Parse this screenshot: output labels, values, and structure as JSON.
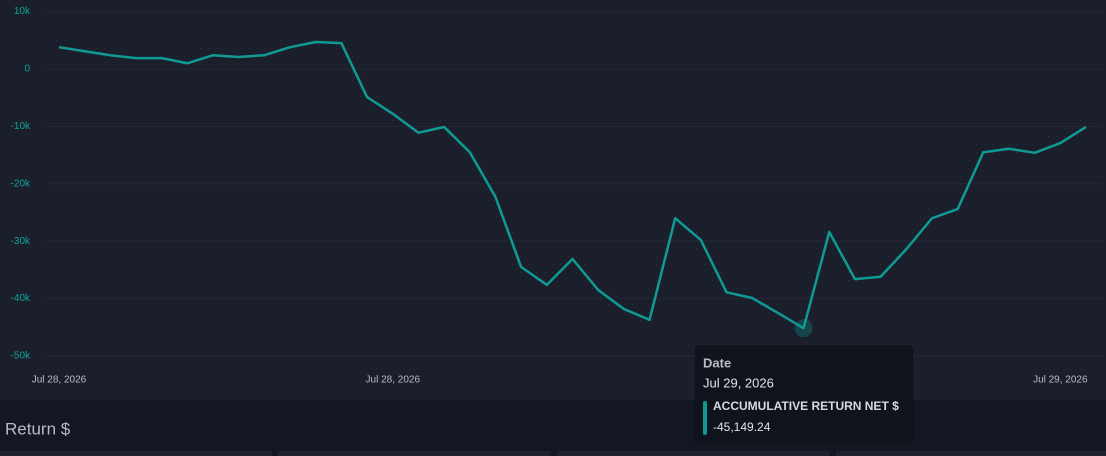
{
  "chart_data": {
    "type": "line",
    "categories": [
      "Jul 28, 2026",
      null,
      null,
      null,
      null,
      null,
      null,
      null,
      null,
      null,
      null,
      null,
      null,
      "Jul 28, 2026",
      null,
      null,
      null,
      null,
      null,
      null,
      null,
      null,
      null,
      null,
      null,
      null,
      null,
      null,
      null,
      null,
      null,
      null,
      null,
      null,
      null,
      null,
      null,
      null,
      null,
      "Jul 29, 2026",
      null
    ],
    "series": [
      {
        "name": "ACCUMULATIVE RETURN NET $",
        "color": "#0f9b94",
        "values": [
          3800,
          3100,
          2400,
          1900,
          1900,
          1000,
          2400,
          2100,
          2400,
          3800,
          4700,
          4500,
          -4900,
          -7800,
          -11100,
          -10100,
          -14500,
          -22300,
          -34500,
          -37600,
          -33100,
          -38500,
          -41800,
          -43700,
          -26000,
          -29800,
          -38900,
          -39900,
          -42500,
          -45149.24,
          -28400,
          -36600,
          -36200,
          -31400,
          -26000,
          -24400,
          -14500,
          -13900,
          -14600,
          -12900,
          -10100
        ]
      }
    ],
    "ylim": [
      -50000,
      10000
    ],
    "yticks": [
      {
        "value": -50000,
        "label": "-50k"
      },
      {
        "value": -40000,
        "label": "-40k"
      },
      {
        "value": -30000,
        "label": "-30k"
      },
      {
        "value": -20000,
        "label": "-20k"
      },
      {
        "value": -10000,
        "label": "-10k"
      },
      0,
      {
        "value": 10000,
        "label": "10k"
      }
    ],
    "grid": true,
    "tooltip": {
      "title": "Date",
      "date": "Jul 29, 2026",
      "index": 29,
      "value_label": "-45,149.24"
    }
  },
  "panel": {
    "title": "Return $"
  }
}
